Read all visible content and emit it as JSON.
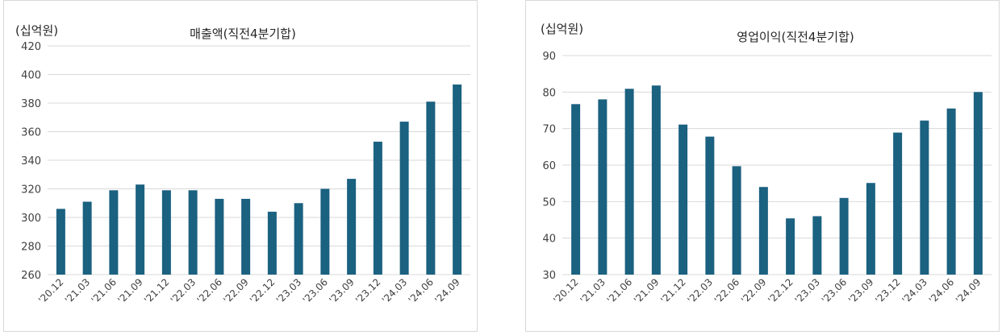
{
  "charts_meta": {
    "bar_color": "#1b6180",
    "grid_color": "#d9d9d9"
  },
  "chart_data": [
    {
      "type": "bar",
      "title": "매출액(직전4분기합)",
      "unit_label": "(십억원)",
      "categories": [
        "'20.12",
        "'21.03",
        "'21.06",
        "'21.09",
        "'21.12",
        "'22.03",
        "'22.06",
        "'22.09",
        "'22.12",
        "'23.03",
        "'23.06",
        "'23.09",
        "'23.12",
        "'24.03",
        "'24.06",
        "'24.09"
      ],
      "values": [
        306,
        311,
        319,
        323,
        319,
        319,
        313,
        313,
        304,
        310,
        320,
        327,
        353,
        367,
        381,
        393
      ],
      "ylim": [
        260,
        420
      ],
      "yticks": [
        260,
        280,
        300,
        320,
        340,
        360,
        380,
        400,
        420
      ],
      "grid": true,
      "legend": "none"
    },
    {
      "type": "bar",
      "title": "영업이익(직전4분기합)",
      "unit_label": "(십억원)",
      "categories": [
        "'20.12",
        "'21.03",
        "'21.06",
        "'21.09",
        "'21.12",
        "'22.03",
        "'22.06",
        "'22.09",
        "'22.12",
        "'23.03",
        "'23.06",
        "'23.09",
        "'23.12",
        "'24.03",
        "'24.06",
        "'24.09"
      ],
      "values": [
        76.7,
        78.0,
        80.9,
        81.8,
        71.1,
        67.8,
        59.7,
        54.0,
        45.4,
        46.0,
        51.0,
        55.1,
        68.9,
        72.2,
        75.5,
        80.0
      ],
      "ylim": [
        30,
        90
      ],
      "yticks": [
        30,
        40,
        50,
        60,
        70,
        80,
        90
      ],
      "grid": true,
      "legend": "none"
    }
  ]
}
